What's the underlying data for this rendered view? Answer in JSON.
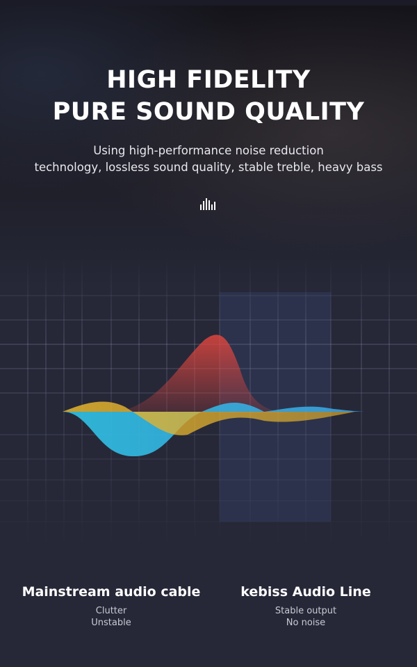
{
  "header": {
    "title_line1": "HIGH FIDELITY",
    "title_line2": "PURE SOUND QUALITY",
    "subtitle_line1": "Using high-performance noise reduction",
    "subtitle_line2": "technology, lossless sound quality, stable treble, heavy bass",
    "icon": "equalizer-bars-icon"
  },
  "colors": {
    "background": "#262838",
    "wave_red": "#e0463e",
    "wave_yellow": "#e8b62c",
    "wave_cyan": "#2fc4e6"
  },
  "comparison": [
    {
      "title": "Mainstream audio cable",
      "line1": "Clutter",
      "line2": "Unstable"
    },
    {
      "title": "kebiss Audio Line",
      "line1": "Stable output",
      "line2": "No noise"
    }
  ]
}
